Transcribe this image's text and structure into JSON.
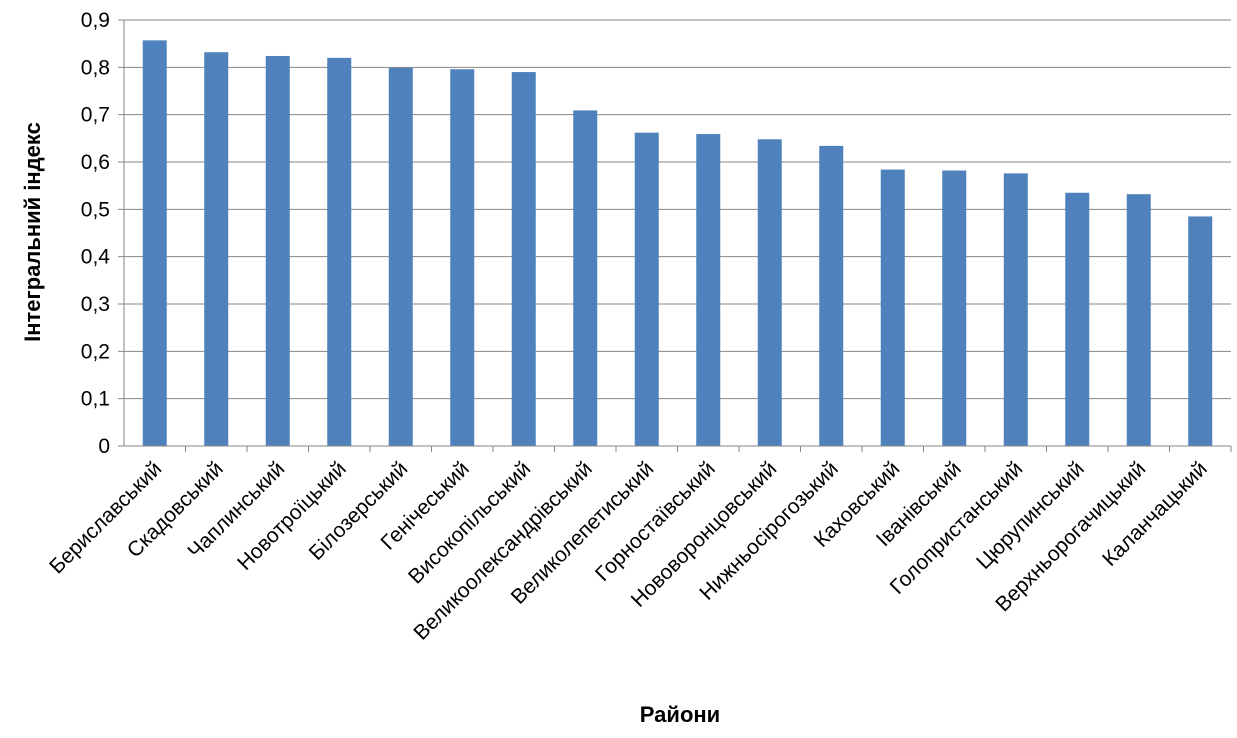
{
  "chart_data": {
    "type": "bar",
    "title": "",
    "xlabel": "Райони",
    "ylabel": "Інтегральний індекс",
    "ylim": [
      0,
      0.9
    ],
    "yticks": [
      "0",
      "0,1",
      "0,2",
      "0,3",
      "0,4",
      "0,5",
      "0,6",
      "0,7",
      "0,8",
      "0,9"
    ],
    "grid": true,
    "legend": "none",
    "bar_color": "#4f81bd",
    "categories": [
      "Бериславський",
      "Скадовський",
      "Чаплинський",
      "Новотроїцький",
      "Білозерський",
      "Генічеський",
      "Високопільський",
      "Великоолександрівський",
      "Великолепетиський",
      "Горностаївський",
      "Нововоронцовський",
      "Нижньосірогозький",
      "Каховський",
      "Іванівський",
      "Голопристанський",
      "Цюрупинський",
      "Верхньорогачицький",
      "Каланчацький"
    ],
    "values": [
      0.857,
      0.832,
      0.824,
      0.82,
      0.799,
      0.796,
      0.79,
      0.709,
      0.662,
      0.659,
      0.648,
      0.634,
      0.584,
      0.582,
      0.576,
      0.535,
      0.532,
      0.485
    ]
  }
}
